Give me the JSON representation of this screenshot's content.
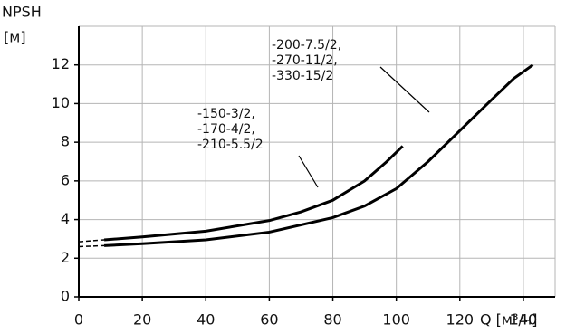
{
  "chart_data": {
    "type": "line",
    "ylabel": "NPSH",
    "yunit": "[м]",
    "xlabel": "Q [м³/ч]",
    "xlim": [
      0,
      150
    ],
    "ylim": [
      0,
      14
    ],
    "xticks": [
      0,
      20,
      40,
      60,
      80,
      100,
      120,
      140
    ],
    "yticks": [
      0,
      2,
      4,
      6,
      8,
      10,
      12
    ],
    "grid": true,
    "dashed_start": true,
    "series": [
      {
        "label_lines": [
          "-150-3/2,",
          "-170-4/2,",
          "-210-5.5/2"
        ],
        "color": "#000000",
        "x": [
          0,
          8,
          20,
          40,
          60,
          70,
          80,
          90,
          97,
          102
        ],
        "values": [
          2.85,
          2.95,
          3.1,
          3.4,
          3.95,
          4.4,
          5.0,
          6.0,
          7.0,
          7.8
        ]
      },
      {
        "label_lines": [
          "-200-7.5/2,",
          "-270-11/2,",
          "-330-15/2"
        ],
        "color": "#000000",
        "x": [
          0,
          8,
          20,
          40,
          60,
          80,
          90,
          100,
          110,
          120,
          130,
          137,
          143
        ],
        "values": [
          2.6,
          2.65,
          2.75,
          2.95,
          3.35,
          4.1,
          4.7,
          5.6,
          7.0,
          8.6,
          10.2,
          11.3,
          12.0
        ]
      }
    ]
  }
}
